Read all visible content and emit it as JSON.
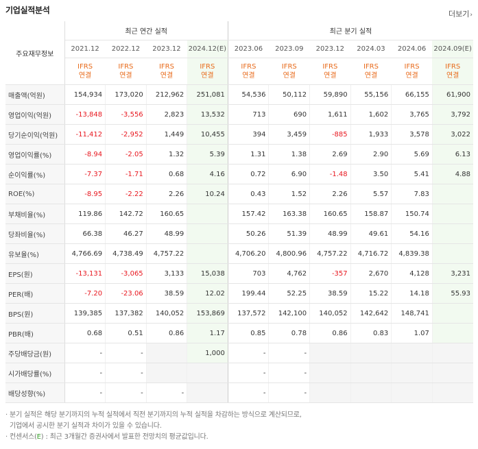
{
  "header": {
    "title": "기업실적분석",
    "more_label": "더보기",
    "more_arrow": "›"
  },
  "table": {
    "label_header": "주요재무정보",
    "groups": [
      "최근 연간 실적",
      "최근 분기 실적"
    ],
    "periods": [
      "2021.12",
      "2022.12",
      "2023.12",
      "2024.12(E)",
      "2023.06",
      "2023.09",
      "2023.12",
      "2024.03",
      "2024.06",
      "2024.09(E)"
    ],
    "basis_line1": "IFRS",
    "basis_line2": "연결",
    "rows": [
      {
        "label": "매출액(억원)",
        "values": [
          "154,934",
          "173,020",
          "212,962",
          "251,081",
          "54,536",
          "50,112",
          "59,890",
          "55,156",
          "66,155",
          "61,900"
        ]
      },
      {
        "label": "영업이익(억원)",
        "values": [
          "-13,848",
          "-3,556",
          "2,823",
          "13,532",
          "713",
          "690",
          "1,611",
          "1,602",
          "3,765",
          "3,792"
        ]
      },
      {
        "label": "당기순이익(억원)",
        "values": [
          "-11,412",
          "-2,952",
          "1,449",
          "10,455",
          "394",
          "3,459",
          "-885",
          "1,933",
          "3,578",
          "3,022"
        ]
      },
      {
        "label": "영업이익률(%)",
        "values": [
          "-8.94",
          "-2.05",
          "1.32",
          "5.39",
          "1.31",
          "1.38",
          "2.69",
          "2.90",
          "5.69",
          "6.13"
        ]
      },
      {
        "label": "순이익률(%)",
        "values": [
          "-7.37",
          "-1.71",
          "0.68",
          "4.16",
          "0.72",
          "6.90",
          "-1.48",
          "3.50",
          "5.41",
          "4.88"
        ]
      },
      {
        "label": "ROE(%)",
        "values": [
          "-8.95",
          "-2.22",
          "2.26",
          "10.24",
          "0.43",
          "1.52",
          "2.26",
          "5.57",
          "7.83",
          ""
        ]
      },
      {
        "label": "부채비율(%)",
        "values": [
          "119.86",
          "142.72",
          "160.65",
          "",
          "157.42",
          "163.38",
          "160.65",
          "158.87",
          "150.74",
          ""
        ]
      },
      {
        "label": "당좌비율(%)",
        "values": [
          "66.38",
          "46.27",
          "48.99",
          "",
          "50.26",
          "51.39",
          "48.99",
          "49.61",
          "54.16",
          ""
        ]
      },
      {
        "label": "유보율(%)",
        "values": [
          "4,766.69",
          "4,738.49",
          "4,757.22",
          "",
          "4,706.20",
          "4,800.96",
          "4,757.22",
          "4,716.72",
          "4,839.38",
          ""
        ]
      },
      {
        "label": "EPS(원)",
        "values": [
          "-13,131",
          "-3,065",
          "3,133",
          "15,038",
          "703",
          "4,762",
          "-357",
          "2,670",
          "4,128",
          "3,231"
        ]
      },
      {
        "label": "PER(배)",
        "values": [
          "-7.20",
          "-23.06",
          "38.59",
          "12.02",
          "199.44",
          "52.25",
          "38.59",
          "15.22",
          "14.18",
          "55.93"
        ]
      },
      {
        "label": "BPS(원)",
        "values": [
          "139,385",
          "137,382",
          "140,052",
          "153,869",
          "137,572",
          "142,100",
          "140,052",
          "142,642",
          "148,741",
          ""
        ]
      },
      {
        "label": "PBR(배)",
        "values": [
          "0.68",
          "0.51",
          "0.86",
          "1.17",
          "0.85",
          "0.78",
          "0.86",
          "0.83",
          "1.07",
          ""
        ]
      },
      {
        "label": "주당배당금(원)",
        "values": [
          "-",
          "-",
          "",
          "1,000",
          "-",
          "-",
          "",
          "",
          "",
          ""
        ]
      },
      {
        "label": "시가배당률(%)",
        "values": [
          "-",
          "-",
          "",
          "",
          "-",
          "-",
          "",
          "",
          "",
          ""
        ]
      },
      {
        "label": "배당성향(%)",
        "values": [
          "-",
          "-",
          "-",
          "",
          "-",
          "-",
          "",
          "",
          "",
          ""
        ]
      }
    ]
  },
  "notes": {
    "line1": "· 분기 실적은 해당 분기까지의 누적 실적에서 직전 분기까지의 누적 실적을 차감하는 방식으로 계산되므로,",
    "line2": "  기업에서 공시한 분기 실적과 차이가 있을 수 있습니다.",
    "line3_prefix": "· 컨센서스(",
    "line3_mark": "E",
    "line3_suffix": ") : 최근 3개월간 증권사에서 발표한 전망치의 평균값입니다."
  },
  "colors": {
    "negative": "#e8161e",
    "ifrs": "#e86a1a",
    "estimate_bg": "#f2faf0",
    "estimate_mark": "#3aa02c"
  }
}
